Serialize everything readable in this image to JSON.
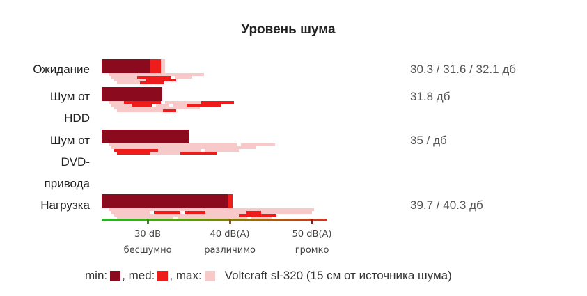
{
  "chart_data": {
    "type": "bar",
    "title": "Уровень шума",
    "categories": [
      "Ожидание",
      "Шум от HDD",
      "Шум от DVD-привода",
      "Нагрузка"
    ],
    "category_display": [
      "Ожидание",
      "Шум от\nHDD",
      "Шум от\nDVD-\nпривода",
      "Нагрузка"
    ],
    "value_labels": [
      "30.3 / 31.6 / 32.1 дб",
      "31.8 дб",
      "35 / дб",
      "39.7 / 40.3 дб"
    ],
    "series": [
      {
        "name": "min",
        "values": [
          30.3,
          31.8,
          35.0,
          39.7
        ],
        "color": "#8b0a1e"
      },
      {
        "name": "med",
        "values": [
          31.6,
          null,
          null,
          40.3
        ],
        "color": "#ef1c1c"
      },
      {
        "name": "max",
        "values": [
          32.1,
          null,
          null,
          null
        ],
        "color": "#f8c9c9"
      }
    ],
    "x_axis": {
      "ticks": [
        {
          "value": 30,
          "label": "30 dB",
          "sublabel": "бесшумно",
          "color": "#3a8a1a"
        },
        {
          "value": 40,
          "label": "40 dB(A)",
          "sublabel": "различимо",
          "color": "#8a5a12"
        },
        {
          "value": 50,
          "label": "50 dB(A)",
          "sublabel": "громко",
          "color": "#a0151b"
        }
      ],
      "xlim": [
        24.4,
        54.0
      ]
    },
    "legend": {
      "items": [
        {
          "label": "min:",
          "color": "#8b0a1e"
        },
        {
          "label": "med:",
          "color": "#ef1c1c"
        },
        {
          "label": "max:",
          "color": "#f8c9c9"
        }
      ],
      "separator": ", ",
      "note": "Voltcraft sl-320 (15 см от источника шума)",
      "placement": "bottom"
    }
  }
}
